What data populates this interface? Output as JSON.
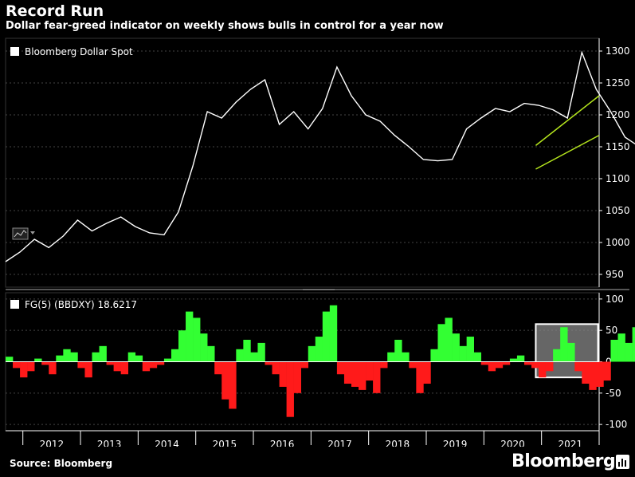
{
  "header": {
    "title": "Record Run",
    "subtitle": "Dollar fear-greed indicator on weekly shows bulls in control for a year now"
  },
  "footer": {
    "source": "Source: Bloomberg",
    "brand": "Bloomberg"
  },
  "colors": {
    "background": "#000000",
    "price_line": "#ffffff",
    "positive_bars": "#33ff33",
    "negative_bars": "#ff1a1a",
    "channel": "#b5e61d",
    "highlight_box": "#ffffff"
  },
  "chart_data": [
    {
      "type": "line",
      "legend": "Bloomberg Dollar Spot",
      "x_start": 2011.7,
      "x_step": 0.25,
      "ylim": [
        930,
        1320
      ],
      "yticks": [
        950,
        1000,
        1050,
        1100,
        1150,
        1200,
        1250,
        1300
      ],
      "grid": true,
      "series": [
        {
          "name": "Bloomberg Dollar Spot",
          "values": [
            970,
            985,
            1005,
            992,
            1010,
            1035,
            1018,
            1030,
            1040,
            1025,
            1015,
            1012,
            1048,
            1120,
            1205,
            1195,
            1220,
            1240,
            1255,
            1185,
            1205,
            1178,
            1210,
            1275,
            1230,
            1200,
            1190,
            1168,
            1150,
            1130,
            1128,
            1130,
            1178,
            1195,
            1210,
            1205,
            1218,
            1215,
            1208,
            1195,
            1298,
            1240,
            1205,
            1165,
            1150,
            1128,
            1140,
            1122,
            1142,
            1155,
            1170,
            1190,
            1198
          ]
        }
      ],
      "annotations": {
        "channel_label": "upward trend channel",
        "channel_start": {
          "x": 2020.9,
          "lower": 1115,
          "upper": 1152
        },
        "channel_end": {
          "x": 2022.0,
          "lower": 1168,
          "upper": 1230
        }
      }
    },
    {
      "type": "bar",
      "legend": "FG(5) (BBDXY) 18.6217",
      "x_start": 2011.7,
      "x_step": 0.125,
      "ylim": [
        -110,
        110
      ],
      "yticks": [
        -100,
        -50,
        0,
        50,
        100
      ],
      "grid": true,
      "series": [
        {
          "name": "FG(5) (BBDXY)",
          "values": [
            8,
            -10,
            -25,
            -15,
            5,
            -5,
            -20,
            10,
            20,
            15,
            -10,
            -25,
            15,
            25,
            -5,
            -15,
            -20,
            15,
            10,
            -15,
            -10,
            -5,
            5,
            20,
            50,
            80,
            70,
            45,
            25,
            -20,
            -60,
            -75,
            20,
            35,
            15,
            30,
            -5,
            -20,
            -40,
            -88,
            -50,
            -10,
            25,
            40,
            80,
            90,
            -20,
            -35,
            -40,
            -45,
            -30,
            -50,
            -10,
            15,
            35,
            15,
            -10,
            -50,
            -35,
            20,
            60,
            70,
            45,
            25,
            40,
            15,
            -5,
            -15,
            -10,
            -5,
            5,
            10,
            -5,
            -10,
            -25,
            -15,
            20,
            55,
            30,
            -15,
            -35,
            -45,
            -40,
            -30,
            35,
            45,
            30,
            55,
            40,
            35,
            45,
            50,
            25,
            35,
            18
          ]
        }
      ],
      "annotations": {
        "highlight_x": [
          2020.9,
          2021.98
        ],
        "highlight_y": [
          -25,
          60
        ]
      }
    }
  ],
  "x_axis": {
    "year_labels": [
      "2012",
      "2013",
      "2014",
      "2015",
      "2016",
      "2017",
      "2018",
      "2019",
      "2020",
      "2021"
    ],
    "range": [
      2011.7,
      2022.0
    ]
  }
}
